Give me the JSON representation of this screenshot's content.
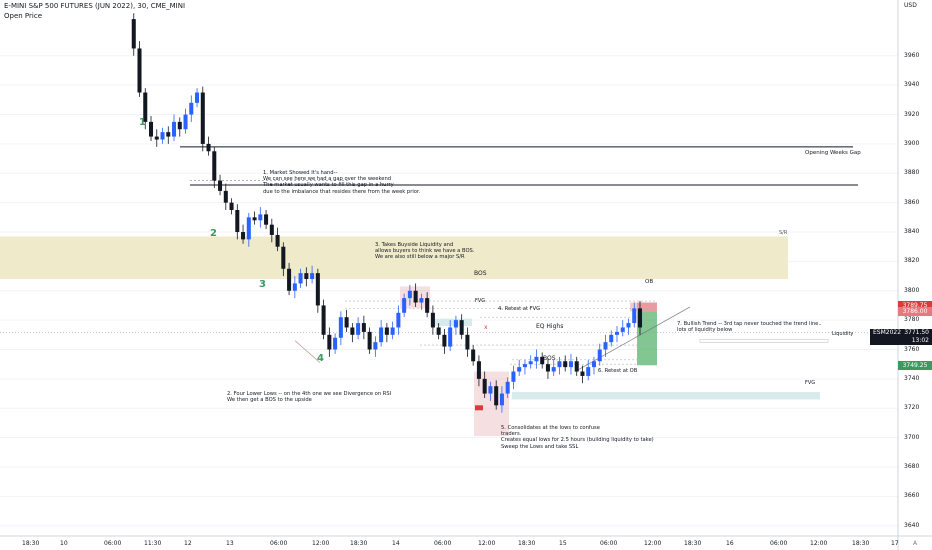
{
  "header": {
    "title": "E-MINI S&P 500 FUTURES (JUN 2022), 30, CME_MINI",
    "subtitle": "Open Price",
    "currency": "USD"
  },
  "colors": {
    "up": "#2962ff",
    "down": "#131722",
    "green": "#3c9a5f",
    "sr_zone": "#ede9c4",
    "fvg": "#d8ebec",
    "ob": "#e6a3a9",
    "target": "#58b36e",
    "background": "#eaedf5"
  },
  "chart_data": {
    "type": "candlestick",
    "symbol": "ESM2022",
    "interval": "30",
    "ylim": [
      3633,
      3998
    ],
    "y_ticks": [
      3640,
      3660,
      3680,
      3700,
      3720,
      3740,
      3760,
      3780,
      3800,
      3820,
      3840,
      3860,
      3880,
      3900,
      3920,
      3940,
      3960
    ],
    "x_ticks": [
      "18:30",
      "10",
      "06:00",
      "11:30",
      "12",
      "13",
      "06:00",
      "12:00",
      "18:30",
      "14",
      "06:00",
      "12:00",
      "18:30",
      "15",
      "06:00",
      "12:00",
      "18:30",
      "16",
      "06:00",
      "12:00",
      "18:30",
      "17"
    ],
    "close_path": [
      3985,
      3965,
      3935,
      3915,
      3905,
      3903,
      3908,
      3905,
      3915,
      3910,
      3920,
      3928,
      3935,
      3900,
      3895,
      3875,
      3868,
      3860,
      3855,
      3840,
      3835,
      3850,
      3848,
      3852,
      3845,
      3838,
      3830,
      3815,
      3800,
      3805,
      3812,
      3808,
      3812,
      3790,
      3770,
      3760,
      3768,
      3782,
      3775,
      3770,
      3778,
      3772,
      3760,
      3765,
      3775,
      3770,
      3775,
      3785,
      3795,
      3800,
      3792,
      3795,
      3785,
      3775,
      3770,
      3762,
      3775,
      3780,
      3770,
      3760,
      3752,
      3740,
      3730,
      3735,
      3722,
      3730,
      3738,
      3745,
      3748,
      3750,
      3752,
      3755,
      3750,
      3745,
      3748,
      3752,
      3748,
      3752,
      3745,
      3742,
      3748,
      3752,
      3760,
      3765,
      3770,
      3772,
      3775,
      3778,
      3788,
      3775
    ],
    "price_labels": [
      {
        "text": "3789.75",
        "price": 3789.75
      },
      {
        "text": "3786.00",
        "price": 3786.0
      },
      {
        "text": "3749.25",
        "price": 3749.25
      }
    ],
    "current": {
      "symbol": "ESM2022",
      "price": "3771.50",
      "countdown": "13:02"
    },
    "levels": [
      {
        "name": "Opening Weeks Gap",
        "price": 3872
      },
      {
        "name": "",
        "price": 3898
      }
    ],
    "zones": [
      {
        "name": "S/R",
        "from": 3808,
        "to": 3837
      },
      {
        "name": "FVG",
        "from": 3781,
        "to": 3776
      },
      {
        "name": "FVG",
        "from": 3731,
        "to": 3726
      },
      {
        "name": "OB",
        "from": 3792,
        "to": 3786
      }
    ],
    "wave_labels": [
      "1",
      "2",
      "3",
      "4"
    ],
    "annotations": [
      "1. Market Showed It's hand--\nWe can see here we had a gap over the weekend\nThe market usually wants to fill this gap in a hurry\ndue to the imbalance that resides there from the week prior.",
      "2. Four Lower Lows -- on the 4th one we see Divergence on RSI\nWe then get a BOS to the upside",
      "3. Takes Buyside Liquidity and\nallows buyers to think we have a BOS.\nWe are also still below a major S/R",
      "4. Retest at FVG",
      "5. Consolidates at the lows to confuse\ntraders.\nCreates equal lows for 2.5 hours (building liquidity to take)\nSweep the Lows and take SSL",
      "6. Retest at OB",
      "7. Bullish Trend -- 3rd tap never touched the trend line..\nlots of liquidity below"
    ],
    "tags": {
      "bos1": "BOS",
      "bos2": "BOS",
      "eq_highs": "EQ Highs",
      "liquidity": "Liquidity",
      "x": "x",
      "a": "A"
    }
  }
}
